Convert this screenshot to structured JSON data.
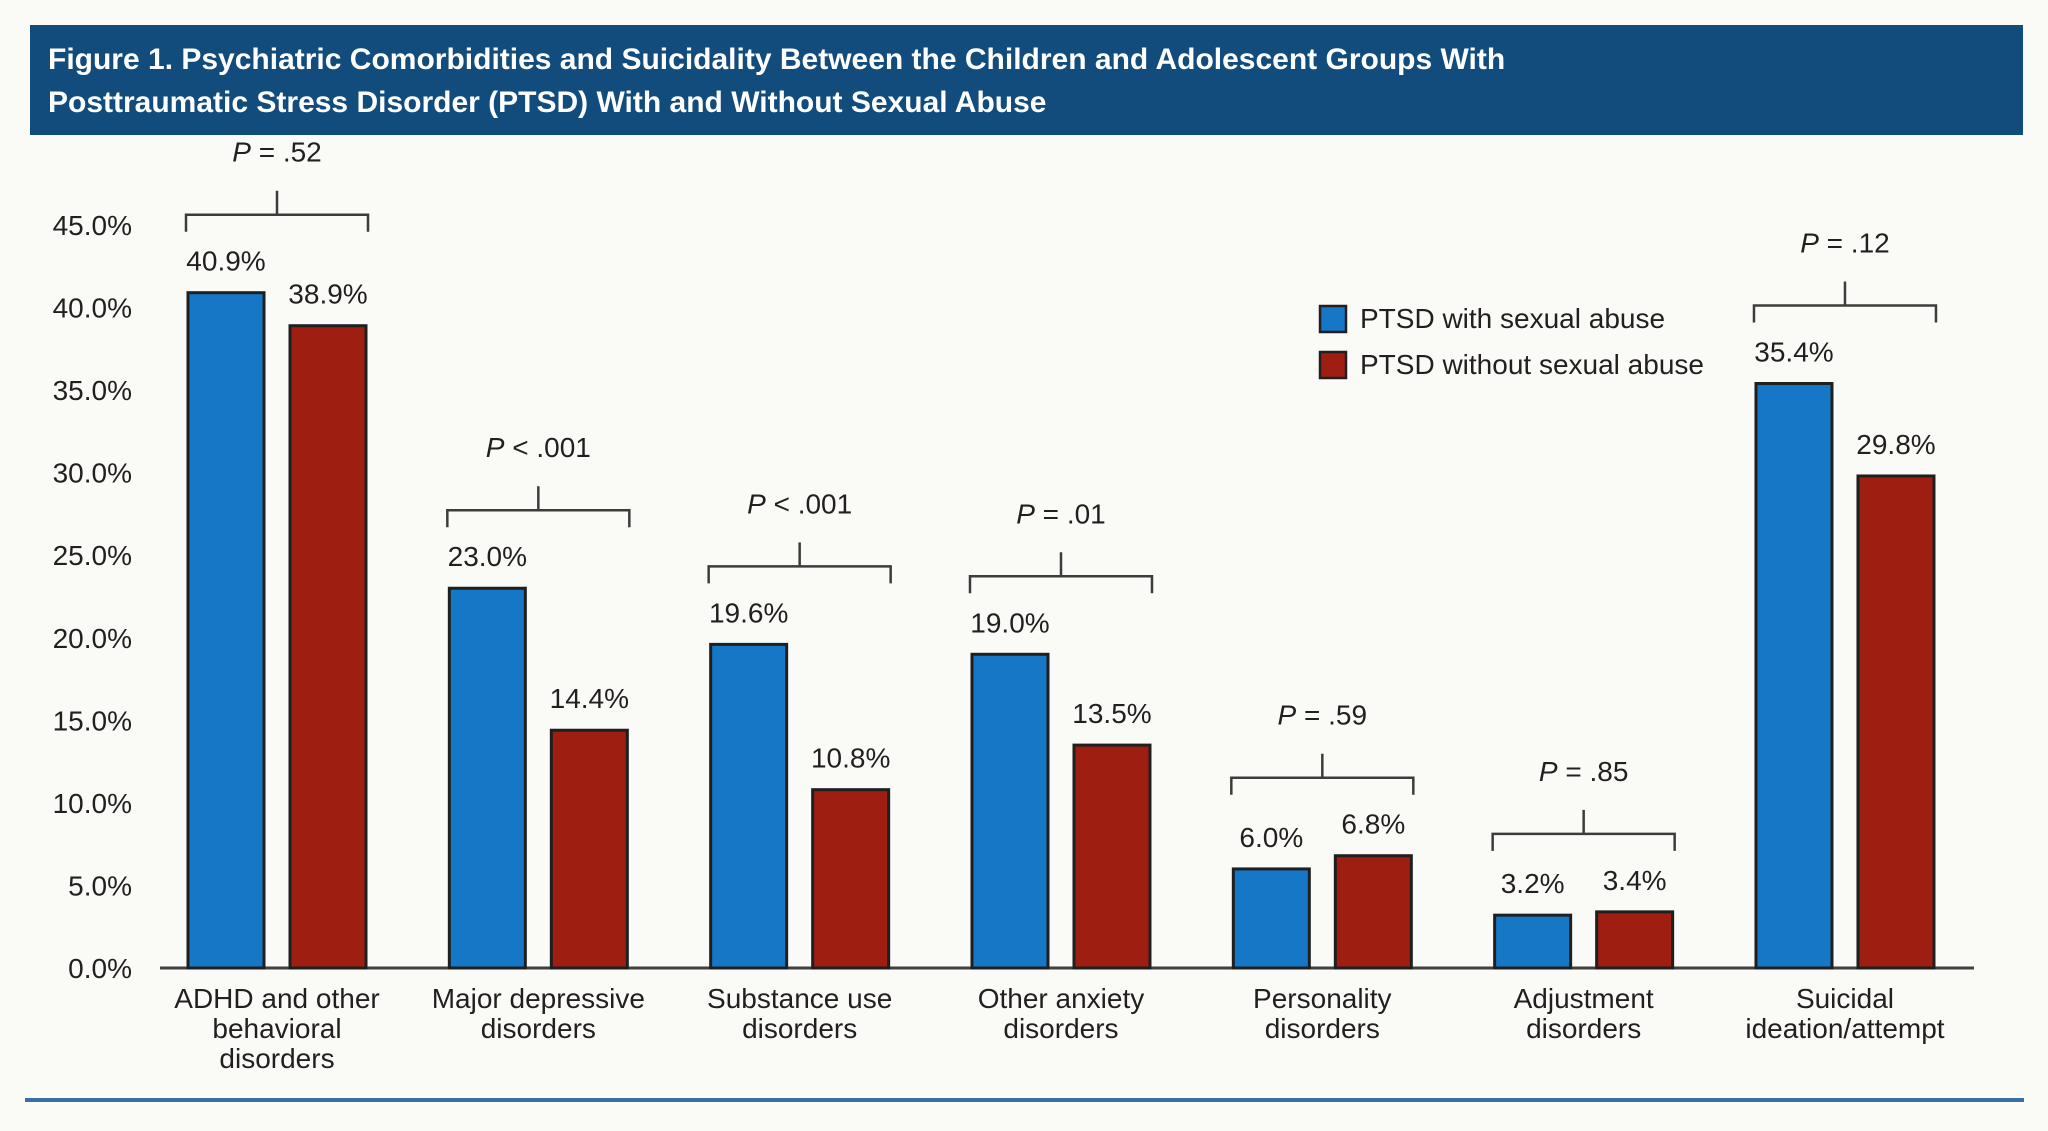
{
  "header": {
    "title_line1": "Figure 1. Psychiatric Comorbidities and Suicidality Between the Children and Adolescent Groups With",
    "title_line2": "Posttraumatic Stress Disorder (PTSD) With and Without Sexual Abuse"
  },
  "colors": {
    "header_bg": "#114C7D",
    "header_text": "#FFFFFF",
    "bar_blue": "#1577C6",
    "bar_red": "#9E1F12",
    "bar_outline": "#1F1F1F",
    "axis": "#404040",
    "bracket": "#3C3C3C",
    "text": "#231F20",
    "bottom_rule": "#3A6EA5",
    "background": "#FAFAF7"
  },
  "chart_data": {
    "type": "bar",
    "title": "Figure 1. Psychiatric Comorbidities and Suicidality Between the Children and Adolescent Groups With Posttraumatic Stress Disorder (PTSD) With and Without Sexual Abuse",
    "categories": [
      [
        "ADHD and other",
        "behavioral",
        "disorders"
      ],
      [
        "Major depressive",
        "disorders"
      ],
      [
        "Substance use",
        "disorders"
      ],
      [
        "Other anxiety",
        "disorders"
      ],
      [
        "Personality",
        "disorders"
      ],
      [
        "Adjustment",
        "disorders"
      ],
      [
        "Suicidal",
        "ideation/attempt"
      ]
    ],
    "series": [
      {
        "name": "PTSD with sexual abuse",
        "color": "#1577C6",
        "values": [
          40.9,
          23.0,
          19.6,
          19.0,
          6.0,
          3.2,
          35.4
        ],
        "labels": [
          "40.9%",
          "23.0%",
          "19.6%",
          "19.0%",
          "6.0%",
          "3.2%",
          "35.4%"
        ]
      },
      {
        "name": "PTSD without sexual abuse",
        "color": "#9E1F12",
        "values": [
          38.9,
          14.4,
          10.8,
          13.5,
          6.8,
          3.4,
          29.8
        ],
        "labels": [
          "38.9%",
          "14.4%",
          "10.8%",
          "13.5%",
          "6.8%",
          "3.4%",
          "29.8%"
        ]
      }
    ],
    "p_values": [
      "P = .52",
      "P < .001",
      "P < .001",
      "P = .01",
      "P = .59",
      "P = .85",
      "P = .12"
    ],
    "y_ticks": [
      "0.0%",
      "5.0%",
      "10.0%",
      "15.0%",
      "20.0%",
      "25.0%",
      "30.0%",
      "35.0%",
      "40.0%",
      "45.0%"
    ],
    "ylim": [
      0,
      45
    ],
    "ylabel": "",
    "xlabel": "",
    "grid": false,
    "legend_position": "upper right (inside plot)"
  }
}
